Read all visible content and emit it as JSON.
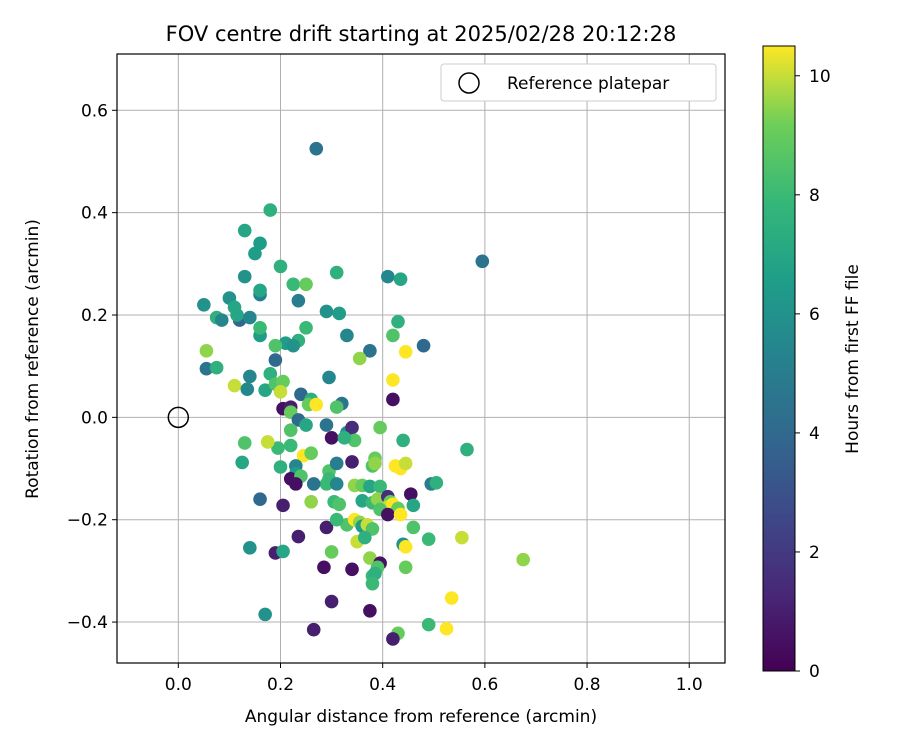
{
  "chart_data": {
    "type": "scatter",
    "title": "FOV centre drift starting at 2025/02/28 20:12:28",
    "xlabel": "Angular distance from reference (arcmin)",
    "ylabel": "Rotation from reference (arcmin)",
    "xlim": [
      -0.12,
      1.07
    ],
    "ylim": [
      -0.48,
      0.71
    ],
    "xticks": [
      0.0,
      0.2,
      0.4,
      0.6,
      0.8,
      1.0
    ],
    "yticks": [
      -0.4,
      -0.2,
      0.0,
      0.2,
      0.4,
      0.6
    ],
    "xtick_labels": [
      "0.0",
      "0.2",
      "0.4",
      "0.6",
      "0.8",
      "1.0"
    ],
    "ytick_labels": [
      "−0.4",
      "−0.2",
      "0.0",
      "0.2",
      "0.4",
      "0.6"
    ],
    "grid": true,
    "legend": {
      "label": "Reference platepar",
      "placement": "top-right",
      "marker": "open-circle"
    },
    "reference_point": {
      "x": 0.0,
      "y": 0.0
    },
    "colorbar": {
      "label": "Hours from first FF file",
      "colormap": "viridis",
      "range": [
        0,
        10.5
      ],
      "ticks": [
        0,
        2,
        4,
        6,
        8,
        10
      ],
      "tick_labels": [
        "0",
        "2",
        "4",
        "6",
        "8",
        "10"
      ]
    },
    "points": [
      {
        "x": 0.27,
        "y": 0.525,
        "h": 4.5
      },
      {
        "x": 0.595,
        "y": 0.305,
        "h": 4.5
      },
      {
        "x": 0.18,
        "y": 0.405,
        "h": 7.5
      },
      {
        "x": 0.13,
        "y": 0.365,
        "h": 7.0
      },
      {
        "x": 0.16,
        "y": 0.34,
        "h": 6.5
      },
      {
        "x": 0.15,
        "y": 0.32,
        "h": 6.5
      },
      {
        "x": 0.13,
        "y": 0.275,
        "h": 6.0
      },
      {
        "x": 0.2,
        "y": 0.295,
        "h": 7.5
      },
      {
        "x": 0.225,
        "y": 0.26,
        "h": 8.0
      },
      {
        "x": 0.25,
        "y": 0.26,
        "h": 9.0
      },
      {
        "x": 0.31,
        "y": 0.283,
        "h": 7.5
      },
      {
        "x": 0.41,
        "y": 0.275,
        "h": 5.5
      },
      {
        "x": 0.435,
        "y": 0.27,
        "h": 7.0
      },
      {
        "x": 0.05,
        "y": 0.22,
        "h": 6.0
      },
      {
        "x": 0.1,
        "y": 0.233,
        "h": 6.0
      },
      {
        "x": 0.11,
        "y": 0.215,
        "h": 7.0
      },
      {
        "x": 0.16,
        "y": 0.24,
        "h": 5.0
      },
      {
        "x": 0.16,
        "y": 0.248,
        "h": 7.0
      },
      {
        "x": 0.235,
        "y": 0.228,
        "h": 5.0
      },
      {
        "x": 0.29,
        "y": 0.207,
        "h": 6.0
      },
      {
        "x": 0.315,
        "y": 0.203,
        "h": 6.5
      },
      {
        "x": 0.075,
        "y": 0.195,
        "h": 7.5
      },
      {
        "x": 0.085,
        "y": 0.19,
        "h": 5.5
      },
      {
        "x": 0.12,
        "y": 0.19,
        "h": 4.0
      },
      {
        "x": 0.115,
        "y": 0.2,
        "h": 7.0
      },
      {
        "x": 0.14,
        "y": 0.195,
        "h": 5.5
      },
      {
        "x": 0.16,
        "y": 0.16,
        "h": 6.5
      },
      {
        "x": 0.16,
        "y": 0.175,
        "h": 8.0
      },
      {
        "x": 0.25,
        "y": 0.175,
        "h": 8.0
      },
      {
        "x": 0.33,
        "y": 0.16,
        "h": 5.5
      },
      {
        "x": 0.43,
        "y": 0.187,
        "h": 7.5
      },
      {
        "x": 0.42,
        "y": 0.16,
        "h": 8.5
      },
      {
        "x": 0.48,
        "y": 0.14,
        "h": 4.0
      },
      {
        "x": 0.055,
        "y": 0.13,
        "h": 9.5
      },
      {
        "x": 0.21,
        "y": 0.145,
        "h": 6.5
      },
      {
        "x": 0.235,
        "y": 0.15,
        "h": 7.5
      },
      {
        "x": 0.225,
        "y": 0.14,
        "h": 6.0
      },
      {
        "x": 0.19,
        "y": 0.14,
        "h": 8.5
      },
      {
        "x": 0.375,
        "y": 0.13,
        "h": 4.5
      },
      {
        "x": 0.445,
        "y": 0.128,
        "h": 10.5
      },
      {
        "x": 0.355,
        "y": 0.115,
        "h": 9.5
      },
      {
        "x": 0.19,
        "y": 0.112,
        "h": 4.0
      },
      {
        "x": 0.055,
        "y": 0.095,
        "h": 4.5
      },
      {
        "x": 0.075,
        "y": 0.097,
        "h": 7.5
      },
      {
        "x": 0.18,
        "y": 0.085,
        "h": 7.5
      },
      {
        "x": 0.14,
        "y": 0.08,
        "h": 5.5
      },
      {
        "x": 0.295,
        "y": 0.078,
        "h": 5.5
      },
      {
        "x": 0.42,
        "y": 0.073,
        "h": 10.5
      },
      {
        "x": 0.11,
        "y": 0.062,
        "h": 10.0
      },
      {
        "x": 0.135,
        "y": 0.055,
        "h": 5.5
      },
      {
        "x": 0.17,
        "y": 0.053,
        "h": 7.0
      },
      {
        "x": 0.19,
        "y": 0.065,
        "h": 8.5
      },
      {
        "x": 0.205,
        "y": 0.07,
        "h": 9.0
      },
      {
        "x": 0.2,
        "y": 0.05,
        "h": 10.0
      },
      {
        "x": 0.24,
        "y": 0.045,
        "h": 4.0
      },
      {
        "x": 0.26,
        "y": 0.035,
        "h": 7.5
      },
      {
        "x": 0.42,
        "y": 0.035,
        "h": 0.5
      },
      {
        "x": 0.255,
        "y": 0.025,
        "h": 9.0
      },
      {
        "x": 0.27,
        "y": 0.025,
        "h": 10.5
      },
      {
        "x": 0.32,
        "y": 0.027,
        "h": 4.5
      },
      {
        "x": 0.31,
        "y": 0.02,
        "h": 8.5
      },
      {
        "x": 0.205,
        "y": 0.017,
        "h": 0.5
      },
      {
        "x": 0.22,
        "y": 0.02,
        "h": 1.0
      },
      {
        "x": 0.22,
        "y": 0.01,
        "h": 9.0
      },
      {
        "x": 0.235,
        "y": -0.005,
        "h": 4.0
      },
      {
        "x": 0.25,
        "y": -0.015,
        "h": 7.0
      },
      {
        "x": 0.29,
        "y": -0.015,
        "h": 4.5
      },
      {
        "x": 0.33,
        "y": -0.03,
        "h": 6.0
      },
      {
        "x": 0.3,
        "y": -0.04,
        "h": 0.5
      },
      {
        "x": 0.34,
        "y": -0.02,
        "h": 1.5
      },
      {
        "x": 0.395,
        "y": -0.02,
        "h": 9.0
      },
      {
        "x": 0.345,
        "y": -0.045,
        "h": 8.5
      },
      {
        "x": 0.325,
        "y": -0.04,
        "h": 7.5
      },
      {
        "x": 0.22,
        "y": -0.025,
        "h": 8.5
      },
      {
        "x": 0.13,
        "y": -0.05,
        "h": 8.5
      },
      {
        "x": 0.195,
        "y": -0.06,
        "h": 8.0
      },
      {
        "x": 0.22,
        "y": -0.055,
        "h": 8.0
      },
      {
        "x": 0.175,
        "y": -0.048,
        "h": 10.0
      },
      {
        "x": 0.44,
        "y": -0.045,
        "h": 7.5
      },
      {
        "x": 0.565,
        "y": -0.063,
        "h": 7.5
      },
      {
        "x": 0.245,
        "y": -0.075,
        "h": 10.5
      },
      {
        "x": 0.26,
        "y": -0.07,
        "h": 9.0
      },
      {
        "x": 0.125,
        "y": -0.088,
        "h": 7.0
      },
      {
        "x": 0.34,
        "y": -0.087,
        "h": 1.0
      },
      {
        "x": 0.385,
        "y": -0.08,
        "h": 9.0
      },
      {
        "x": 0.38,
        "y": -0.095,
        "h": 8.5
      },
      {
        "x": 0.385,
        "y": -0.09,
        "h": 9.5
      },
      {
        "x": 0.2,
        "y": -0.097,
        "h": 7.5
      },
      {
        "x": 0.23,
        "y": -0.095,
        "h": 5.5
      },
      {
        "x": 0.23,
        "y": -0.11,
        "h": 6.5
      },
      {
        "x": 0.295,
        "y": -0.105,
        "h": 8.5
      },
      {
        "x": 0.31,
        "y": -0.09,
        "h": 5.0
      },
      {
        "x": 0.425,
        "y": -0.095,
        "h": 10.5
      },
      {
        "x": 0.435,
        "y": -0.1,
        "h": 10.5
      },
      {
        "x": 0.445,
        "y": -0.09,
        "h": 10.0
      },
      {
        "x": 0.22,
        "y": -0.12,
        "h": 0.5
      },
      {
        "x": 0.24,
        "y": -0.115,
        "h": 8.5
      },
      {
        "x": 0.295,
        "y": -0.12,
        "h": 8.0
      },
      {
        "x": 0.29,
        "y": -0.13,
        "h": 8.0
      },
      {
        "x": 0.31,
        "y": -0.13,
        "h": 5.5
      },
      {
        "x": 0.23,
        "y": -0.13,
        "h": 0.5
      },
      {
        "x": 0.265,
        "y": -0.13,
        "h": 4.5
      },
      {
        "x": 0.345,
        "y": -0.133,
        "h": 9.5
      },
      {
        "x": 0.36,
        "y": -0.133,
        "h": 9.0
      },
      {
        "x": 0.375,
        "y": -0.135,
        "h": 7.0
      },
      {
        "x": 0.395,
        "y": -0.135,
        "h": 8.0
      },
      {
        "x": 0.455,
        "y": -0.15,
        "h": 0.5
      },
      {
        "x": 0.495,
        "y": -0.13,
        "h": 5.0
      },
      {
        "x": 0.505,
        "y": -0.128,
        "h": 7.5
      },
      {
        "x": 0.16,
        "y": -0.16,
        "h": 4.0
      },
      {
        "x": 0.205,
        "y": -0.172,
        "h": 1.0
      },
      {
        "x": 0.26,
        "y": -0.165,
        "h": 9.5
      },
      {
        "x": 0.305,
        "y": -0.165,
        "h": 8.0
      },
      {
        "x": 0.315,
        "y": -0.17,
        "h": 8.5
      },
      {
        "x": 0.36,
        "y": -0.163,
        "h": 7.0
      },
      {
        "x": 0.38,
        "y": -0.167,
        "h": 8.0
      },
      {
        "x": 0.39,
        "y": -0.16,
        "h": 9.5
      },
      {
        "x": 0.41,
        "y": -0.155,
        "h": 1.5
      },
      {
        "x": 0.415,
        "y": -0.165,
        "h": 9.0
      },
      {
        "x": 0.41,
        "y": -0.175,
        "h": 10.0
      },
      {
        "x": 0.42,
        "y": -0.17,
        "h": 10.5
      },
      {
        "x": 0.43,
        "y": -0.178,
        "h": 9.0
      },
      {
        "x": 0.395,
        "y": -0.18,
        "h": 8.5
      },
      {
        "x": 0.41,
        "y": -0.19,
        "h": 0.5
      },
      {
        "x": 0.435,
        "y": -0.19,
        "h": 10.5
      },
      {
        "x": 0.46,
        "y": -0.172,
        "h": 7.0
      },
      {
        "x": 0.33,
        "y": -0.21,
        "h": 8.5
      },
      {
        "x": 0.345,
        "y": -0.2,
        "h": 10.5
      },
      {
        "x": 0.355,
        "y": -0.205,
        "h": 9.5
      },
      {
        "x": 0.36,
        "y": -0.213,
        "h": 6.5
      },
      {
        "x": 0.37,
        "y": -0.21,
        "h": 10.0
      },
      {
        "x": 0.38,
        "y": -0.218,
        "h": 8.5
      },
      {
        "x": 0.29,
        "y": -0.215,
        "h": 1.0
      },
      {
        "x": 0.31,
        "y": -0.2,
        "h": 8.0
      },
      {
        "x": 0.46,
        "y": -0.215,
        "h": 8.5
      },
      {
        "x": 0.235,
        "y": -0.233,
        "h": 1.0
      },
      {
        "x": 0.35,
        "y": -0.243,
        "h": 10.0
      },
      {
        "x": 0.365,
        "y": -0.235,
        "h": 7.5
      },
      {
        "x": 0.44,
        "y": -0.248,
        "h": 6.0
      },
      {
        "x": 0.445,
        "y": -0.253,
        "h": 10.5
      },
      {
        "x": 0.49,
        "y": -0.238,
        "h": 8.0
      },
      {
        "x": 0.555,
        "y": -0.235,
        "h": 10.0
      },
      {
        "x": 0.14,
        "y": -0.255,
        "h": 6.0
      },
      {
        "x": 0.19,
        "y": -0.265,
        "h": 1.0
      },
      {
        "x": 0.205,
        "y": -0.262,
        "h": 7.0
      },
      {
        "x": 0.3,
        "y": -0.263,
        "h": 9.0
      },
      {
        "x": 0.375,
        "y": -0.275,
        "h": 9.5
      },
      {
        "x": 0.675,
        "y": -0.278,
        "h": 9.5
      },
      {
        "x": 0.285,
        "y": -0.293,
        "h": 0.5
      },
      {
        "x": 0.34,
        "y": -0.297,
        "h": 0.5
      },
      {
        "x": 0.395,
        "y": -0.285,
        "h": 0.5
      },
      {
        "x": 0.39,
        "y": -0.293,
        "h": 8.5
      },
      {
        "x": 0.445,
        "y": -0.293,
        "h": 9.0
      },
      {
        "x": 0.38,
        "y": -0.31,
        "h": 8.0
      },
      {
        "x": 0.385,
        "y": -0.305,
        "h": 7.5
      },
      {
        "x": 0.38,
        "y": -0.325,
        "h": 8.0
      },
      {
        "x": 0.535,
        "y": -0.353,
        "h": 10.5
      },
      {
        "x": 0.3,
        "y": -0.36,
        "h": 1.0
      },
      {
        "x": 0.375,
        "y": -0.378,
        "h": 0.5
      },
      {
        "x": 0.17,
        "y": -0.385,
        "h": 6.0
      },
      {
        "x": 0.49,
        "y": -0.405,
        "h": 8.0
      },
      {
        "x": 0.525,
        "y": -0.413,
        "h": 10.5
      },
      {
        "x": 0.265,
        "y": -0.415,
        "h": 1.0
      },
      {
        "x": 0.43,
        "y": -0.422,
        "h": 9.0
      },
      {
        "x": 0.42,
        "y": -0.433,
        "h": 1.0
      }
    ]
  }
}
